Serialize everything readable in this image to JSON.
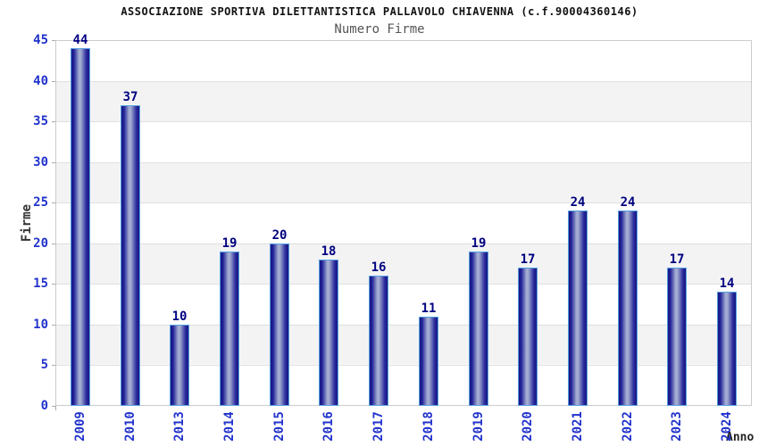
{
  "header": {
    "title": "ASSOCIAZIONE SPORTIVA DILETTANTISTICA PALLAVOLO CHIAVENNA (c.f.90004360146)",
    "subtitle": "Numero Firme"
  },
  "chart_data": {
    "type": "bar",
    "title": "Numero Firme",
    "categories": [
      "2009",
      "2010",
      "2013",
      "2014",
      "2015",
      "2016",
      "2017",
      "2018",
      "2019",
      "2020",
      "2021",
      "2022",
      "2023",
      "2024"
    ],
    "values": [
      44,
      37,
      10,
      19,
      20,
      18,
      16,
      11,
      19,
      17,
      24,
      24,
      17,
      14
    ],
    "xlabel": "Anno",
    "ylabel": "Firme",
    "ylim": [
      0,
      45
    ],
    "y_ticks": [
      0,
      5,
      10,
      15,
      20,
      25,
      30,
      35,
      40,
      45
    ],
    "grid": "horizontal-bands-alternating",
    "legend": "none",
    "colors": {
      "bar_dark": "#17177f",
      "bar_light": "#aab2d8",
      "bar_border": "#55a0e0",
      "tick_label_blue": "#2233cc",
      "value_label_navy": "#000080",
      "band_gray": "#f3f3f3",
      "plot_border": "#cccccc",
      "title_color": "#111111",
      "subtitle_color": "#555555"
    }
  }
}
